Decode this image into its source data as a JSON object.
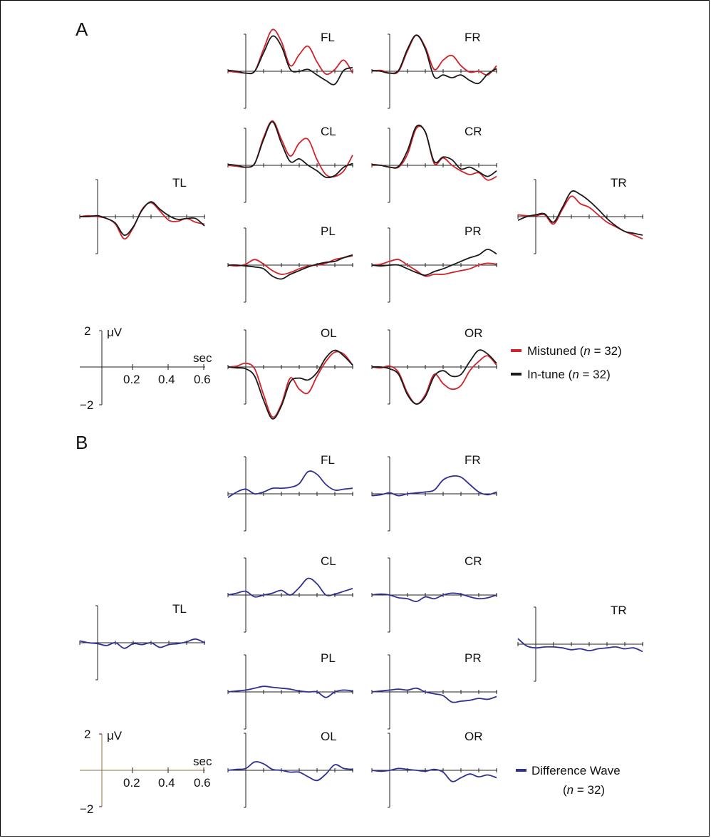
{
  "colors": {
    "mistuned": "#d2232a",
    "in_tune": "#1a1a1a",
    "difference": "#2e3192",
    "scale_axis_b": "#8a7340"
  },
  "panel_a": {
    "letter": "A",
    "scale": {
      "y_top": "2",
      "y_bottom": "−2",
      "unit": "μV",
      "x_unit": "sec",
      "ticks": [
        "0.2",
        "0.4",
        "0.6"
      ]
    },
    "legend": [
      {
        "label": "Mistuned (",
        "n_label": "n",
        "suffix": " = 32)",
        "color": "#d2232a"
      },
      {
        "label": "In-tune (",
        "n_label": "n",
        "suffix": " = 32)",
        "color": "#1a1a1a"
      }
    ]
  },
  "panel_b": {
    "letter": "B",
    "scale": {
      "y_top": "2",
      "y_bottom": "−2",
      "unit": "μV",
      "x_unit": "sec",
      "ticks": [
        "0.2",
        "0.4",
        "0.6"
      ]
    },
    "legend": [
      {
        "label": "Difference Wave",
        "line2_open": "(",
        "n_label": "n",
        "line2_close": " = 32)",
        "color": "#2e3192"
      }
    ]
  },
  "chart_data": [
    {
      "type": "line",
      "panel": "A",
      "x_unit": "sec",
      "y_unit": "μV",
      "xlim": [
        -0.1,
        0.6
      ],
      "ylim": [
        -2,
        2
      ],
      "x": [
        -0.1,
        -0.05,
        0,
        0.05,
        0.1,
        0.15,
        0.2,
        0.25,
        0.3,
        0.35,
        0.4,
        0.45,
        0.5,
        0.55,
        0.6
      ],
      "channels": [
        {
          "name": "FL",
          "series": [
            {
              "name": "Mistuned (n = 32)",
              "values": [
                0,
                -0.05,
                -0.1,
                0,
                1.2,
                2.25,
                1.6,
                0.3,
                0.9,
                1.35,
                0.5,
                -0.15,
                0.1,
                0.6,
                -0.1
              ]
            },
            {
              "name": "In-tune (n = 32)",
              "values": [
                0.05,
                0,
                -0.1,
                0,
                1.0,
                1.9,
                1.35,
                0.1,
                0.0,
                0.1,
                -0.2,
                -0.5,
                -0.7,
                0.05,
                0.2
              ]
            }
          ]
        },
        {
          "name": "FR",
          "series": [
            {
              "name": "Mistuned (n = 32)",
              "values": [
                0,
                0.05,
                -0.1,
                0.0,
                1.1,
                1.95,
                1.3,
                0.1,
                0.6,
                0.85,
                0.3,
                -0.05,
                0.0,
                -0.2,
                0.3
              ]
            },
            {
              "name": "In-tune (n = 32)",
              "values": [
                0.05,
                0.0,
                -0.1,
                0.05,
                1.2,
                1.95,
                1.2,
                -0.3,
                -0.2,
                -0.35,
                -0.2,
                -0.5,
                -0.65,
                -0.15,
                0.15
              ]
            }
          ]
        },
        {
          "name": "CL",
          "series": [
            {
              "name": "Mistuned (n = 32)",
              "values": [
                0,
                -0.05,
                -0.1,
                0.1,
                1.5,
                2.4,
                1.4,
                0.5,
                1.2,
                1.4,
                0.3,
                -0.5,
                -0.6,
                -0.3,
                0.55
              ]
            },
            {
              "name": "In-tune (n = 32)",
              "values": [
                0.05,
                0.0,
                -0.1,
                0.1,
                1.4,
                2.35,
                1.2,
                0.2,
                0.35,
                0.0,
                -0.3,
                -0.65,
                -0.55,
                -0.1,
                0.1
              ]
            }
          ]
        },
        {
          "name": "CR",
          "series": [
            {
              "name": "Mistuned (n = 32)",
              "values": [
                0,
                0.0,
                -0.1,
                -0.1,
                0.6,
                2.0,
                1.8,
                0.1,
                0.4,
                0.0,
                -0.3,
                -0.5,
                -0.4,
                -0.8,
                -0.6
              ]
            },
            {
              "name": "In-tune (n = 32)",
              "values": [
                0.05,
                0.0,
                -0.1,
                -0.05,
                0.8,
                2.1,
                1.8,
                0.2,
                0.45,
                0.3,
                -0.2,
                -0.1,
                -0.35,
                -0.6,
                -0.3
              ]
            }
          ]
        },
        {
          "name": "TL",
          "series": [
            {
              "name": "Mistuned (n = 32)",
              "values": [
                0,
                0.05,
                0.0,
                -0.1,
                -0.4,
                -1.2,
                -0.6,
                0.4,
                0.75,
                0.3,
                -0.2,
                -0.25,
                -0.1,
                -0.3,
                -0.4
              ]
            },
            {
              "name": "In-tune (n = 32)",
              "values": [
                0,
                0.0,
                0.05,
                -0.1,
                -0.35,
                -1.0,
                -0.55,
                0.35,
                0.8,
                0.4,
                0.05,
                -0.15,
                -0.1,
                -0.1,
                -0.5
              ]
            }
          ]
        },
        {
          "name": "TR",
          "series": [
            {
              "name": "Mistuned (n = 32)",
              "values": [
                0.1,
                0.05,
                0.05,
                0.1,
                -0.4,
                0.4,
                1.1,
                0.7,
                0.5,
                0.1,
                -0.3,
                -0.55,
                -0.8,
                -1.0,
                -1.2
              ]
            },
            {
              "name": "In-tune (n = 32)",
              "values": [
                -0.2,
                0.0,
                0.1,
                0.15,
                -0.3,
                0.5,
                1.35,
                1.2,
                0.85,
                0.4,
                -0.1,
                -0.5,
                -0.8,
                -0.9,
                -1.0
              ]
            }
          ]
        },
        {
          "name": "PL",
          "series": [
            {
              "name": "Mistuned (n = 32)",
              "values": [
                0,
                -0.05,
                0.05,
                0.3,
                0.05,
                -0.3,
                -0.5,
                -0.4,
                -0.2,
                -0.05,
                0.0,
                0.1,
                0.3,
                0.4,
                0.5
              ]
            },
            {
              "name": "In-tune (n = 32)",
              "values": [
                0,
                0.0,
                -0.05,
                -0.1,
                -0.2,
                -0.6,
                -0.75,
                -0.5,
                -0.3,
                -0.1,
                0.05,
                0.15,
                0.2,
                0.4,
                0.55
              ]
            }
          ]
        },
        {
          "name": "PR",
          "series": [
            {
              "name": "Mistuned (n = 32)",
              "values": [
                0,
                0.05,
                0.2,
                0.3,
                0.0,
                -0.3,
                -0.6,
                -0.5,
                -0.5,
                -0.4,
                -0.3,
                -0.2,
                0.0,
                0.1,
                0.05
              ]
            },
            {
              "name": "In-tune (n = 32)",
              "values": [
                0,
                -0.05,
                0.0,
                0.0,
                -0.2,
                -0.4,
                -0.55,
                -0.35,
                -0.2,
                0.0,
                0.2,
                0.4,
                0.55,
                0.85,
                0.6
              ]
            }
          ]
        },
        {
          "name": "OL",
          "series": [
            {
              "name": "Mistuned (n = 32)",
              "values": [
                0,
                0.05,
                0.2,
                -0.1,
                -1.5,
                -2.7,
                -2.0,
                -0.6,
                -1.2,
                -1.4,
                -0.5,
                0.3,
                0.8,
                0.7,
                0.1
              ]
            },
            {
              "name": "In-tune (n = 32)",
              "values": [
                0,
                -0.05,
                -0.1,
                -0.5,
                -1.8,
                -2.8,
                -2.1,
                -0.8,
                -0.6,
                -0.7,
                -0.3,
                0.5,
                0.9,
                0.6,
                0.1
              ]
            }
          ]
        },
        {
          "name": "OR",
          "series": [
            {
              "name": "Mistuned (n = 32)",
              "values": [
                0,
                -0.05,
                0.05,
                -0.3,
                -1.4,
                -2.0,
                -1.5,
                -0.4,
                -0.9,
                -1.2,
                -1.0,
                -0.2,
                0.3,
                0.6,
                0.1
              ]
            },
            {
              "name": "In-tune (n = 32)",
              "values": [
                0,
                0.0,
                -0.1,
                -0.4,
                -1.5,
                -2.0,
                -1.6,
                -0.5,
                -0.2,
                -0.5,
                -0.4,
                0.3,
                0.9,
                0.7,
                0.2
              ]
            }
          ]
        }
      ]
    },
    {
      "type": "line",
      "panel": "B",
      "x_unit": "sec",
      "y_unit": "μV",
      "xlim": [
        -0.1,
        0.6
      ],
      "ylim": [
        -2,
        2
      ],
      "x": [
        -0.1,
        -0.05,
        0,
        0.05,
        0.1,
        0.15,
        0.2,
        0.25,
        0.3,
        0.35,
        0.4,
        0.45,
        0.5,
        0.55,
        0.6
      ],
      "channels": [
        {
          "name": "FL",
          "series": [
            {
              "name": "Difference Wave (n = 32)",
              "values": [
                -0.2,
                0.1,
                0.25,
                0.0,
                0.1,
                0.3,
                0.3,
                0.35,
                0.55,
                1.2,
                1.05,
                0.5,
                0.2,
                0.25,
                0.3
              ]
            }
          ]
        },
        {
          "name": "FR",
          "series": [
            {
              "name": "Difference Wave (n = 32)",
              "values": [
                -0.1,
                -0.05,
                0.05,
                -0.1,
                0.0,
                0.05,
                0.1,
                0.2,
                0.75,
                0.95,
                0.9,
                0.5,
                0.1,
                -0.05,
                0.1
              ]
            }
          ]
        },
        {
          "name": "CL",
          "series": [
            {
              "name": "Difference Wave (n = 32)",
              "values": [
                0.0,
                0.1,
                0.2,
                -0.1,
                0.0,
                0.1,
                0.25,
                0.0,
                0.4,
                0.9,
                0.6,
                0.0,
                0.05,
                0.2,
                0.35
              ]
            }
          ]
        },
        {
          "name": "CR",
          "series": [
            {
              "name": "Difference Wave (n = 32)",
              "values": [
                0.0,
                0.05,
                0.0,
                -0.15,
                -0.2,
                -0.35,
                -0.1,
                -0.2,
                0.0,
                0.1,
                0.05,
                -0.1,
                -0.2,
                -0.15,
                0.0
              ]
            }
          ]
        },
        {
          "name": "TL",
          "series": [
            {
              "name": "Difference Wave (n = 32)",
              "values": [
                0.1,
                0.0,
                -0.05,
                -0.15,
                0.0,
                -0.3,
                -0.05,
                -0.1,
                0.0,
                -0.25,
                -0.1,
                -0.05,
                0.05,
                0.2,
                0.0
              ]
            }
          ]
        },
        {
          "name": "TR",
          "series": [
            {
              "name": "Difference Wave (n = 32)",
              "values": [
                0.3,
                -0.1,
                -0.2,
                -0.15,
                -0.15,
                -0.2,
                -0.3,
                -0.25,
                -0.35,
                -0.25,
                -0.2,
                -0.15,
                -0.25,
                -0.2,
                -0.4
              ]
            }
          ]
        },
        {
          "name": "PL",
          "series": [
            {
              "name": "Difference Wave (n = 32)",
              "values": [
                0.0,
                0.05,
                0.1,
                0.2,
                0.3,
                0.25,
                0.2,
                0.15,
                0.05,
                0.0,
                0.0,
                -0.3,
                0.0,
                0.1,
                0.05
              ]
            }
          ]
        },
        {
          "name": "PR",
          "series": [
            {
              "name": "Difference Wave (n = 32)",
              "values": [
                0.0,
                0.05,
                0.1,
                0.15,
                0.1,
                0.2,
                0.0,
                -0.1,
                -0.2,
                -0.55,
                -0.5,
                -0.45,
                -0.35,
                -0.4,
                -0.25
              ]
            }
          ]
        },
        {
          "name": "OL",
          "series": [
            {
              "name": "Difference Wave (n = 32)",
              "values": [
                0.0,
                0.05,
                0.1,
                0.45,
                0.35,
                0.05,
                0.0,
                -0.1,
                -0.1,
                -0.35,
                -0.55,
                -0.2,
                0.3,
                0.1,
                0.05
              ]
            }
          ]
        },
        {
          "name": "OR",
          "series": [
            {
              "name": "Difference Wave (n = 32)",
              "values": [
                0.0,
                -0.05,
                0.0,
                0.1,
                0.05,
                0.0,
                -0.05,
                0.05,
                -0.1,
                -0.6,
                -0.4,
                -0.2,
                -0.35,
                -0.25,
                -0.4
              ]
            }
          ]
        }
      ]
    }
  ]
}
